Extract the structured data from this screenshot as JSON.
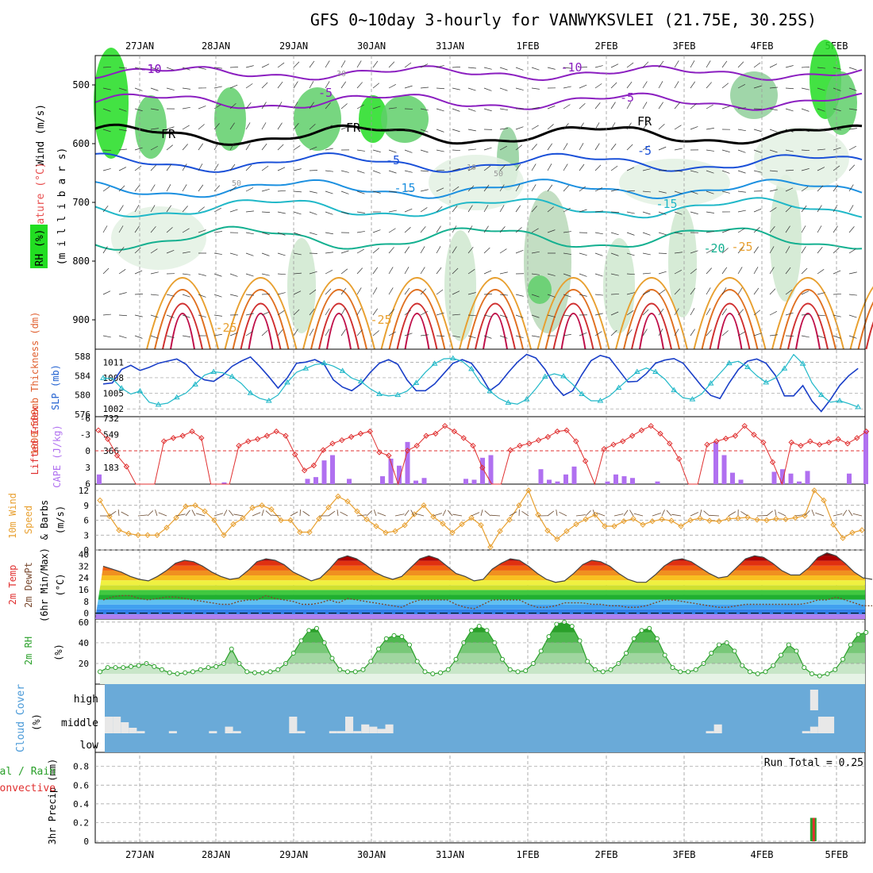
{
  "title": "GFS 0~10day 3-hourly for VANWYKSVLEI (21.75E, 30.25S)",
  "dates": [
    "27JAN",
    "28JAN",
    "29JAN",
    "30JAN",
    "31JAN",
    "1FEB",
    "2FEB",
    "3FEB",
    "4FEB",
    "5FEB"
  ],
  "colors": {
    "frame": "#000000",
    "grid": "#9a9a9a",
    "slp": "#1a3fc8",
    "thickness": "#20b8c8",
    "li": "#e03030",
    "cape": "#b070f0",
    "wind": "#e8a030",
    "temp_line": "#444444",
    "rh": "#2aa02a",
    "cloud_bg": "#6aaad8",
    "cloud": "#e8e8e8",
    "precip_total": "#2aa02a",
    "precip_conv": "#e03030"
  },
  "panels": {
    "upper": {
      "ylabel_wind": "Wind (m/s)",
      "ylabel_temp": "Temperature (°C)",
      "ylabel_rh": "RH (%)",
      "ylabel_p": "(m i l l i b a r s)",
      "ticks": [
        "500",
        "600",
        "700",
        "800",
        "900"
      ],
      "contour_labels": [
        "-10",
        "-10",
        "-5",
        "-5",
        "FR",
        "FR",
        "FR",
        "-5",
        "-5",
        "-10",
        "-15",
        "-15",
        "-20",
        "-25",
        "-25",
        "-25",
        "30",
        "50",
        "50",
        "10"
      ]
    },
    "slp": {
      "ylabel_thick": "1000-500mb Thickness (dm)",
      "ylabel_slp": "SLP (mb)",
      "ticks_left": [
        "588",
        "584",
        "580",
        "576"
      ],
      "ticks_right": [
        "1011",
        "1008",
        "1005",
        "1002"
      ]
    },
    "cape": {
      "ylabel_li": "Lifted Index",
      "ylabel_cape": "CAPE (J/kg)",
      "ticks_left": [
        "-6",
        "-3",
        "0",
        "3",
        "6"
      ],
      "ticks_right": [
        "732",
        "549",
        "366",
        "183"
      ]
    },
    "wind": {
      "ylabel_a": "10m Wind",
      "ylabel_b": "Speed",
      "ylabel_c": "& Barbs",
      "ylabel_unit": "(m/s)",
      "ticks": [
        "12",
        "9",
        "6",
        "3",
        "0"
      ]
    },
    "temp": {
      "ylabel_a": "2m Temp",
      "ylabel_b": "2m DewPt",
      "ylabel_c": "(6hr Min/Max)",
      "ylabel_unit": "(°C)",
      "ticks": [
        "40",
        "32",
        "24",
        "16",
        "8",
        "0"
      ]
    },
    "rh2m": {
      "ylabel": "2m RH",
      "ylabel_unit": "(%)",
      "ticks": [
        "60",
        "40",
        "20"
      ]
    },
    "cloud": {
      "ylabel": "Cloud Cover",
      "ylabel_unit": "(%)",
      "ticks": [
        "high",
        "middle",
        "low"
      ]
    },
    "precip": {
      "ylabel_a": "Total / Rain",
      "ylabel_b": "Convective",
      "ylabel_c": "3hr Precip (mm)",
      "ticks": [
        "0.8",
        "0.6",
        "0.4",
        "0.2",
        "0"
      ],
      "run_total": "Run Total = 0.25"
    }
  },
  "chart_data": [
    {
      "type": "line",
      "title": "SLP (mb) and 1000-500mb Thickness (dm)",
      "x_unit": "3-hourly steps from 26JAN 12Z",
      "series": [
        {
          "name": "SLP (mb)",
          "axis": "right",
          "ylim": [
            1000.5,
            1013.5
          ],
          "values": [
            1006.8,
            1007,
            1009.6,
            1010.4,
            1009.4,
            1010,
            1010.8,
            1011.2,
            1011.6,
            1010.6,
            1008.6,
            1007.6,
            1007.3,
            1008.5,
            1010.2,
            1011.2,
            1012,
            1010.2,
            1008.2,
            1006,
            1008,
            1010.8,
            1011,
            1011.5,
            1010.6,
            1007.6,
            1006.2,
            1005.5,
            1006.8,
            1009,
            1010.8,
            1011.5,
            1010.6,
            1007.6,
            1005.5,
            1005.5,
            1006.8,
            1008.8,
            1010.8,
            1011.5,
            1010.8,
            1008.5,
            1005.5,
            1006.8,
            1009,
            1011,
            1012.5,
            1011.8,
            1009.6,
            1006.6,
            1004.6,
            1005.5,
            1008.6,
            1011.3,
            1012.3,
            1011.8,
            1009.5,
            1007.2,
            1007.3,
            1008.8,
            1010.8,
            1011.4,
            1011.7,
            1010.8,
            1008.6,
            1006.4,
            1004.6,
            1004,
            1007,
            1009.6,
            1011.2,
            1011.6,
            1010.8,
            1008.5,
            1004.5,
            1004.5,
            1006.5,
            1003.5,
            1001.5,
            1003.8,
            1006.5,
            1008.4,
            1009.8
          ]
        },
        {
          "name": "1000-500mb Thickness (dm)",
          "axis": "left",
          "ylim": [
            575.5,
            589.5
          ],
          "values": [
            583.5,
            583.4,
            581.4,
            580.2,
            580.8,
            578.5,
            578,
            578.3,
            579.5,
            580.4,
            582.2,
            584.1,
            584.8,
            584.6,
            583.8,
            582.4,
            580.4,
            579.3,
            578.8,
            580,
            582.6,
            584.7,
            585.5,
            586.3,
            586.6,
            586,
            585,
            583.5,
            582.8,
            581.3,
            580.2,
            579.8,
            580,
            580.8,
            582.5,
            584.7,
            586.5,
            587.5,
            587.6,
            587,
            585.4,
            582.5,
            580.8,
            579.3,
            578.4,
            578.1,
            579.1,
            581.3,
            583.8,
            584.4,
            583.9,
            582.2,
            580.2,
            578.8,
            578.8,
            579.8,
            581.5,
            583.2,
            584.8,
            585.6,
            584.8,
            583.3,
            581,
            579.4,
            579.1,
            580.2,
            582.4,
            584.5,
            586.6,
            587,
            585.8,
            584,
            582.6,
            583.5,
            585.5,
            588.4,
            586.5,
            582.5,
            580,
            578.5,
            578.8,
            578.2,
            577.5
          ]
        }
      ]
    },
    {
      "type": "bar",
      "title": "Lifted Index and CAPE (J/kg)",
      "series": [
        {
          "name": "Lifted Index",
          "axis": "left",
          "ylim": [
            6,
            -6
          ],
          "values": [
            -3.8,
            -2.2,
            0.8,
            2.8,
            6,
            6,
            6,
            -1.8,
            -2.4,
            -2.8,
            -3.6,
            -2.4,
            6,
            6,
            6,
            -1,
            -1.8,
            -2.2,
            -2.8,
            -3.6,
            -2.8,
            0.6,
            3.5,
            2.6,
            -0.2,
            -1.4,
            -2,
            -2.6,
            -3.2,
            -3.6,
            0.2,
            0.8,
            6,
            -0.1,
            -1,
            -2.8,
            -3.2,
            -4.6,
            -3.6,
            -2.4,
            -1,
            3,
            6,
            6,
            -0.2,
            -1,
            -1.4,
            -2,
            -2.6,
            -3.6,
            -3.8,
            -1.8,
            1.8,
            6,
            -0.4,
            -1.2,
            -1.8,
            -2.8,
            -3.8,
            -4.6,
            -3.2,
            -1.4,
            1.4,
            6,
            6,
            -1.2,
            -1.8,
            -2.3,
            -2.8,
            -4.6,
            -3,
            -1.6,
            2,
            6,
            -1.6,
            -1,
            -1.8,
            -1.2,
            -1.6,
            -2.2,
            -1.4,
            -2.4,
            -3.6
          ]
        },
        {
          "name": "CAPE (J/kg)",
          "axis": "right",
          "ylim": [
            0,
            732
          ],
          "values": [
            110,
            0,
            0,
            0,
            0,
            0,
            0,
            0,
            0,
            0,
            0,
            0,
            0,
            0,
            0,
            20,
            0,
            0,
            0,
            0,
            0,
            0,
            0,
            0,
            0,
            60,
            80,
            270,
            330,
            0,
            60,
            0,
            0,
            0,
            90,
            290,
            210,
            480,
            40,
            70,
            0,
            0,
            0,
            0,
            60,
            50,
            300,
            330,
            0,
            0,
            0,
            0,
            0,
            170,
            50,
            30,
            110,
            200,
            0,
            0,
            0,
            30,
            110,
            90,
            70,
            0,
            0,
            30,
            0,
            0,
            0,
            0,
            0,
            0,
            480,
            330,
            130,
            50,
            0,
            0,
            0,
            140,
            170,
            120,
            30,
            150,
            0,
            0,
            0,
            0,
            120,
            0,
            610
          ]
        }
      ]
    },
    {
      "type": "line",
      "title": "10m Wind Speed (m/s)",
      "ylim": [
        0,
        12
      ],
      "values": [
        10,
        6.8,
        4,
        3.3,
        3,
        3,
        3,
        4.5,
        6.5,
        8.8,
        9,
        7.8,
        6,
        3,
        5.2,
        6.4,
        8.5,
        9,
        8.2,
        6,
        6,
        3.6,
        3.6,
        6.3,
        8.6,
        10.8,
        9.8,
        7.8,
        6.2,
        4.8,
        3.5,
        3.8,
        5,
        7.2,
        9,
        6.7,
        5.3,
        3.5,
        5.2,
        6.5,
        5,
        0.6,
        3.8,
        6.1,
        9,
        12,
        7.1,
        3.9,
        2.2,
        3.8,
        5.2,
        6.2,
        7.1,
        4.8,
        4.8,
        5.8,
        6.3,
        5.1,
        5.8,
        6.2,
        5.9,
        4.8,
        6,
        6.4,
        5.9,
        5.8,
        6.3,
        6.4,
        6.6,
        6.1,
        6,
        6.3,
        6.2,
        6.5,
        6.9,
        12,
        10,
        5.1,
        2.4,
        3.5,
        4
      ]
    },
    {
      "type": "area",
      "title": "2m Temp / 2m DewPt (°C)",
      "ylim": [
        -4,
        43
      ],
      "series": [
        {
          "name": "2m Temp",
          "values": [
            32,
            30,
            28,
            25,
            23,
            22,
            25,
            29,
            34,
            36,
            35,
            32,
            28,
            25,
            23,
            24,
            29,
            35,
            37,
            36,
            33,
            28,
            25,
            22,
            24,
            30,
            37,
            39,
            37,
            33,
            28,
            25,
            23,
            25,
            31,
            37,
            39,
            37,
            32,
            27,
            25,
            22,
            23,
            30,
            34,
            37,
            36,
            32,
            27,
            23,
            21,
            22,
            27,
            33,
            36,
            35,
            32,
            27,
            23,
            21,
            21,
            26,
            32,
            36,
            37,
            35,
            31,
            27,
            24,
            25,
            31,
            37,
            39,
            38,
            34,
            29,
            26,
            26,
            31,
            38,
            41,
            39,
            34,
            28,
            24,
            23
          ]
        },
        {
          "name": "2m DewPt",
          "values": [
            9,
            11,
            12,
            12,
            10,
            9,
            10,
            11,
            11,
            10,
            9,
            8,
            7,
            6,
            6,
            8,
            9,
            9,
            12,
            10,
            9,
            8,
            6,
            6,
            7,
            9,
            7,
            10,
            9,
            8,
            7,
            6,
            5,
            4,
            7,
            9,
            9,
            9,
            9,
            6,
            4,
            3,
            6,
            9,
            9,
            9,
            9,
            6,
            4,
            4,
            5,
            7,
            7,
            7,
            6,
            6,
            5,
            5,
            4,
            4,
            5,
            7,
            9,
            9,
            8,
            7,
            6,
            5,
            4,
            4,
            5,
            6,
            6,
            6,
            6,
            6,
            6,
            6,
            7,
            9,
            9,
            11,
            9,
            7,
            5,
            5
          ]
        }
      ]
    },
    {
      "type": "area",
      "title": "2m RH (%)",
      "ylim": [
        0,
        63
      ],
      "values": [
        12,
        16,
        16,
        16,
        17,
        18,
        20,
        17,
        14,
        11,
        10,
        11,
        12,
        14,
        16,
        17,
        20,
        34,
        20,
        12,
        11,
        11,
        12,
        14,
        20,
        30,
        42,
        52,
        54,
        40,
        25,
        14,
        12,
        12,
        14,
        22,
        34,
        44,
        47,
        46,
        38,
        22,
        12,
        10,
        11,
        14,
        24,
        40,
        52,
        56,
        52,
        40,
        24,
        14,
        12,
        13,
        20,
        32,
        46,
        58,
        60,
        56,
        42,
        22,
        14,
        12,
        14,
        20,
        30,
        44,
        52,
        54,
        44,
        28,
        16,
        12,
        12,
        14,
        20,
        30,
        38,
        40,
        32,
        18,
        12,
        10,
        12,
        18,
        28,
        38,
        32,
        16,
        10,
        8,
        10,
        14,
        24,
        38,
        48,
        50
      ]
    },
    {
      "type": "bar",
      "title": "Cloud Cover (%)",
      "note": "middle-level cloud amounts (fraction of band) per 3-hourly step",
      "middle_values": [
        0.75,
        0.75,
        0.5,
        0.25,
        0.1,
        0,
        0,
        0,
        0.1,
        0,
        0,
        0,
        0,
        0.1,
        0,
        0.3,
        0.1,
        0,
        0,
        0,
        0,
        0,
        0,
        0.75,
        0.1,
        0,
        0,
        0,
        0.1,
        0.1,
        0.75,
        0.1,
        0.4,
        0.3,
        0.2,
        0.4,
        0,
        0,
        0,
        0,
        0,
        0,
        0,
        0,
        0,
        0,
        0,
        0,
        0,
        0,
        0,
        0,
        0,
        0,
        0,
        0,
        0,
        0,
        0,
        0,
        0,
        0,
        0,
        0,
        0,
        0,
        0,
        0,
        0,
        0,
        0,
        0,
        0,
        0,
        0,
        0.1,
        0.4,
        0,
        0,
        0,
        0,
        0,
        0,
        0,
        0,
        0,
        0,
        0.1,
        0.3,
        0.75,
        0.75
      ],
      "high_values_index": [
        88
      ],
      "high_value": 1
    },
    {
      "type": "bar",
      "title": "3hr Precip (mm)",
      "ylim": [
        0,
        0.95
      ],
      "total_values_index": [
        88
      ],
      "total_value": 0.25,
      "convective_value": 0.25,
      "run_total": 0.25
    }
  ]
}
